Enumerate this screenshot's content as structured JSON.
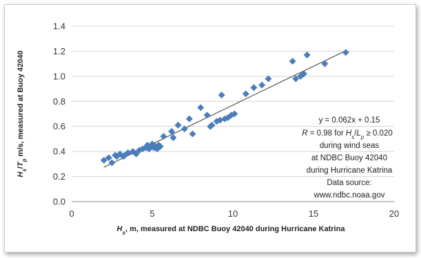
{
  "chart_data": {
    "type": "scatter",
    "xlim": [
      0,
      20
    ],
    "ylim": [
      0.0,
      1.4
    ],
    "x_ticks": [
      0,
      5,
      10,
      15,
      20
    ],
    "y_ticks": [
      "0.0",
      "0.2",
      "0.4",
      "0.6",
      "0.8",
      "1.0",
      "1.2",
      "1.4"
    ],
    "grid": "horizontal",
    "xlabel": "Hs, m, measured at NDBC Buoy 42040 during Hurricane Katrina",
    "xlabel_parts": {
      "sym": "H",
      "sub": "s",
      "rest": ", m, measured at NDBC Buoy 42040 during Hurricane Katrina"
    },
    "ylabel": "Hs/Tp, m/s, measured at Buoy 42040",
    "ylabel_parts": {
      "sym1": "H",
      "sub1": "s",
      "slash": "/",
      "sym2": "T",
      "sub2": "p",
      "rest": " m/s, measured at Buoy 42040"
    },
    "marker_color": "#4a7ebb",
    "trendline": {
      "slope": 0.062,
      "intercept": 0.15,
      "x_range": [
        2.0,
        17.0
      ],
      "color": "#555555"
    },
    "annotation": {
      "line1": "y = 0.062x + 0.15",
      "line2_prefix": "R",
      "line2_mid": " = 0.98 for ",
      "line2_h": "H",
      "line2_hs": "s",
      "line2_slash": "/",
      "line2_l": "L",
      "line2_lp": "p",
      "line2_end": " ≥ 0.020",
      "line3": "during wind seas",
      "line4": "at NDBC Buoy 42040",
      "line5": "during  Hurricane Katrina",
      "line6": "Data source:",
      "line7": "www.ndbc.noaa.gov"
    },
    "series": [
      {
        "x": [
          2.0,
          2.3,
          2.5,
          2.7,
          2.8,
          3.0,
          3.2,
          3.3,
          3.5,
          3.8,
          4.0,
          4.2,
          4.4,
          4.6,
          4.7,
          4.8,
          4.9,
          5.0,
          5.1,
          5.2,
          5.3,
          5.4,
          5.5,
          5.7,
          6.2,
          6.3,
          6.6,
          7.0,
          7.3,
          7.5,
          8.0,
          8.4,
          8.6,
          8.7,
          9.0,
          9.2,
          9.3,
          9.5,
          9.7,
          9.9,
          10.1,
          10.8,
          11.3,
          11.8,
          12.2,
          13.7,
          13.9,
          14.2,
          14.4,
          14.6,
          15.7,
          17.0
        ],
        "y": [
          0.33,
          0.35,
          0.31,
          0.37,
          0.36,
          0.38,
          0.36,
          0.37,
          0.39,
          0.4,
          0.38,
          0.41,
          0.42,
          0.43,
          0.45,
          0.42,
          0.44,
          0.46,
          0.43,
          0.44,
          0.42,
          0.45,
          0.44,
          0.52,
          0.56,
          0.51,
          0.61,
          0.58,
          0.66,
          0.54,
          0.75,
          0.69,
          0.6,
          0.61,
          0.64,
          0.65,
          0.85,
          0.66,
          0.67,
          0.69,
          0.7,
          0.86,
          0.91,
          0.93,
          0.98,
          1.12,
          0.98,
          1.0,
          1.02,
          1.17,
          1.1,
          1.19
        ]
      }
    ]
  }
}
